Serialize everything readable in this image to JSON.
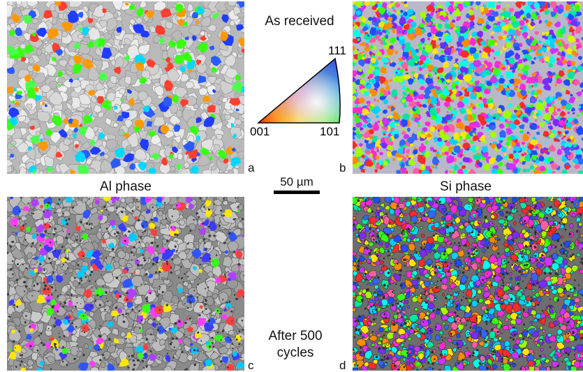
{
  "labels": {
    "as_received": "As received",
    "al_phase": "Al phase",
    "si_phase": "Si phase",
    "after_cycles": "After 500 cycles",
    "scale": "50 µm"
  },
  "panels": {
    "a": "a",
    "b": "b",
    "c": "c",
    "d": "d"
  },
  "legend": {
    "top": "111",
    "left": "001",
    "right": "101"
  },
  "colors": {
    "legend_001": "#ff0000",
    "legend_101": "#00ff00",
    "legend_111": "#0000ff",
    "grain_gray": "#c8c8c8"
  }
}
